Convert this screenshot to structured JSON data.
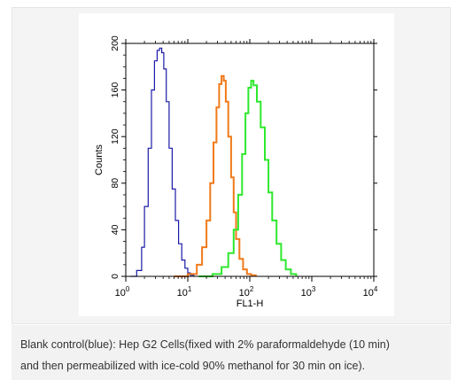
{
  "chart_data": {
    "type": "area",
    "xscale": "log",
    "xlim": [
      1,
      10000
    ],
    "ylim": [
      0,
      200
    ],
    "xlabel": "FL1-H",
    "ylabel": "Counts",
    "yticks": [
      0,
      40,
      80,
      120,
      160,
      200
    ],
    "xticks": [
      {
        "value": 1,
        "base": "10",
        "exp": "0"
      },
      {
        "value": 10,
        "base": "10",
        "exp": "1"
      },
      {
        "value": 100,
        "base": "10",
        "exp": "2"
      },
      {
        "value": 1000,
        "base": "10",
        "exp": "3"
      },
      {
        "value": 10000,
        "base": "10",
        "exp": "4"
      }
    ],
    "grid": false,
    "series": [
      {
        "color": "#1a1aa6",
        "x": [
          1.2,
          1.5,
          1.8,
          2.0,
          2.3,
          2.6,
          2.9,
          3.2,
          3.5,
          3.8,
          4.1,
          4.5,
          5.0,
          5.6,
          6.3,
          7.1,
          8.0,
          9.0,
          10.0,
          11.0,
          12.5
        ],
        "values": [
          0,
          5,
          25,
          60,
          110,
          160,
          185,
          194,
          196,
          192,
          178,
          150,
          110,
          75,
          48,
          28,
          14,
          7,
          3,
          1,
          0
        ]
      },
      {
        "color": "#f07a1a",
        "x": [
          6,
          10,
          14,
          17,
          20,
          23,
          26,
          29,
          32,
          35,
          38,
          41,
          45,
          50,
          55,
          60,
          68,
          78,
          90,
          105,
          125
        ],
        "values": [
          0,
          2,
          10,
          25,
          48,
          80,
          115,
          145,
          165,
          172,
          168,
          150,
          120,
          85,
          55,
          32,
          15,
          6,
          2,
          1,
          0
        ]
      },
      {
        "color": "#2ee82e",
        "x": [
          15,
          25,
          35,
          45,
          55,
          65,
          75,
          85,
          95,
          105,
          115,
          130,
          150,
          175,
          200,
          230,
          270,
          320,
          380,
          460,
          560
        ],
        "values": [
          0,
          2,
          8,
          20,
          40,
          70,
          105,
          140,
          162,
          168,
          164,
          150,
          128,
          100,
          72,
          48,
          28,
          14,
          6,
          2,
          0
        ]
      }
    ]
  },
  "caption": {
    "line1": "Blank control(blue): Hep G2 Cells(fixed with 2% paraformaldehyde (10 min)",
    "line2": "and then permeabilized with ice-cold 90% methanol for 30 min on ice)."
  }
}
